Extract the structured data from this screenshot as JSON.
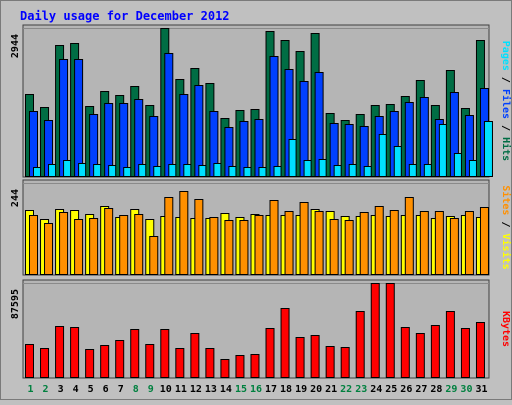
{
  "chart_data": {
    "type": "bar",
    "title": "Daily usage for December 2012",
    "categories": [
      "1",
      "2",
      "3",
      "4",
      "5",
      "6",
      "7",
      "8",
      "9",
      "10",
      "11",
      "12",
      "13",
      "14",
      "15",
      "16",
      "17",
      "18",
      "19",
      "20",
      "21",
      "22",
      "23",
      "24",
      "25",
      "26",
      "27",
      "28",
      "29",
      "30",
      "31"
    ],
    "weekend_days": [
      "1",
      "2",
      "8",
      "9",
      "15",
      "16",
      "22",
      "23",
      "29",
      "30"
    ],
    "panels": [
      {
        "id": "hits",
        "ymax_label": "2944",
        "ylim": [
          0,
          2944
        ],
        "label_parts": [
          "Pages",
          "Files",
          "Hits"
        ],
        "series": [
          {
            "name": "Hits",
            "color": "#006d44",
            "values": [
              1648,
              1391,
              2614,
              2640,
              1405,
              1692,
              1620,
              1805,
              1425,
              2944,
              1936,
              2161,
              1855,
              1161,
              1314,
              1342,
              2876,
              2711,
              2484,
              2844,
              1262,
              1134,
              1247,
              1416,
              1445,
              1599,
              1910,
              1432,
              2112,
              1372,
              2700
            ]
          },
          {
            "name": "Files",
            "color": "#0040ff",
            "values": [
              1303,
              1126,
              2323,
              2340,
              1254,
              1458,
              1457,
              1549,
              1214,
              2450,
              1638,
              1826,
              1308,
              992,
              1114,
              1152,
              2397,
              2135,
              1901,
              2077,
              1068,
              1043,
              1011,
              1200,
              1300,
              1481,
              1587,
              1150,
              1686,
              1228,
              1753
            ]
          },
          {
            "name": "Pages",
            "color": "#00e0ff",
            "values": [
              201,
              261,
              335,
              270,
              247,
              242,
              196,
              266,
              218,
              248,
              255,
              238,
              272,
              209,
              204,
              196,
              222,
              750,
              343,
              352,
              233,
              260,
              224,
              843,
              622,
              259,
              263,
              1044,
              469,
              340,
              1115
            ]
          }
        ]
      },
      {
        "id": "visits",
        "ymax_label": "244",
        "ylim": [
          0,
          244
        ],
        "label_parts": [
          "Sites",
          "Visits"
        ],
        "series": [
          {
            "name": "Visits",
            "color": "#ffff00",
            "values": [
              172,
              148,
              174,
              172,
              163,
              183,
              153,
              175,
              149,
              157,
              155,
              151,
              151,
              164,
              155,
              161,
              160,
              158,
              158,
              174,
              170,
              156,
              156,
              158,
              156,
              160,
              158,
              152,
              156,
              158,
              154
            ]
          },
          {
            "name": "Sites",
            "color": "#ff9000",
            "values": [
              159,
              138,
              166,
              148,
              150,
              178,
              160,
              163,
              103,
              208,
              222,
              201,
              155,
              145,
              145,
              160,
              198,
              171,
              193,
              171,
              148,
              145,
              167,
              182,
              173,
              208,
              170,
              171,
              150,
              171,
              180
            ]
          }
        ]
      },
      {
        "id": "kbytes",
        "ymax_label": "87595",
        "ylim": [
          0,
          87595
        ],
        "label_parts": [
          "KBytes"
        ],
        "series": [
          {
            "name": "KBytes",
            "color": "#ff0000",
            "values": [
              31500,
              27500,
              48000,
              47200,
              26500,
              30200,
              34700,
              45000,
              31800,
              45300,
              27800,
              41600,
              28000,
              17500,
              21500,
              22300,
              46000,
              65000,
              37700,
              39600,
              29500,
              28800,
              61800,
              87595,
              87595,
              47000,
              41100,
              48600,
              61400,
              45800,
              51700
            ]
          }
        ]
      }
    ]
  },
  "colors": {
    "background": "#c0c0c0",
    "plot_background": "#b5b5b5",
    "title": "#0000ff",
    "axis_label": "#000000",
    "weekday_label": "#000000",
    "weekend_label": "#00803f",
    "separator": "#404040",
    "bar_outline": "#000000"
  }
}
